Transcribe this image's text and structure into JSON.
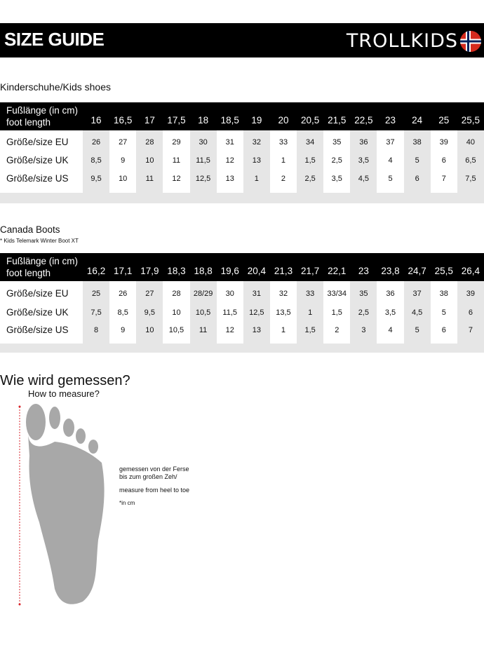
{
  "header": {
    "title": "SIZE GUIDE",
    "brand": "TROLLKIDS",
    "flag_icon": "norway-flag-icon"
  },
  "colors": {
    "band": "#000000",
    "alt_column": "#e6e6e6",
    "arrow": "#d9262c",
    "foot": "#a8a8a8"
  },
  "tables": [
    {
      "title": "Kinderschuhe/Kids shoes",
      "note": "",
      "header_label_1": "Fußlänge (in cm)",
      "header_label_2": "foot length",
      "foot_lengths": [
        "16",
        "16,5",
        "17",
        "17,5",
        "18",
        "18,5",
        "19",
        "20",
        "20,5",
        "21,5",
        "22,5",
        "23",
        "24",
        "25",
        "25,5"
      ],
      "rows": [
        {
          "label": "Größe/size EU",
          "values": [
            "26",
            "27",
            "28",
            "29",
            "30",
            "31",
            "32",
            "33",
            "34",
            "35",
            "36",
            "37",
            "38",
            "39",
            "40"
          ]
        },
        {
          "label": "Größe/size UK",
          "values": [
            "8,5",
            "9",
            "10",
            "11",
            "11,5",
            "12",
            "13",
            "1",
            "1,5",
            "2,5",
            "3,5",
            "4",
            "5",
            "6",
            "6,5"
          ]
        },
        {
          "label": "Größe/size US",
          "values": [
            "9,5",
            "10",
            "11",
            "12",
            "12,5",
            "13",
            "1",
            "2",
            "2,5",
            "3,5",
            "4,5",
            "5",
            "6",
            "7",
            "7,5"
          ]
        }
      ]
    },
    {
      "title": "Canada Boots",
      "note": "* Kids Telemark Winter Boot XT",
      "header_label_1": "Fußlänge (in cm)",
      "header_label_2": "foot length",
      "foot_lengths": [
        "16,2",
        "17,1",
        "17,9",
        "18,3",
        "18,8",
        "19,6",
        "20,4",
        "21,3",
        "21,7",
        "22,1",
        "23",
        "23,8",
        "24,7",
        "25,5",
        "26,4"
      ],
      "rows": [
        {
          "label": "Größe/size EU",
          "values": [
            "25",
            "26",
            "27",
            "28",
            "28/29",
            "30",
            "31",
            "32",
            "33",
            "33/34",
            "35",
            "36",
            "37",
            "38",
            "39"
          ]
        },
        {
          "label": "Größe/size UK",
          "values": [
            "7,5",
            "8,5",
            "9,5",
            "10",
            "10,5",
            "11,5",
            "12,5",
            "13,5",
            "1",
            "1,5",
            "2,5",
            "3,5",
            "4,5",
            "5",
            "6"
          ]
        },
        {
          "label": "Größe/size US",
          "values": [
            "8",
            "9",
            "10",
            "10,5",
            "11",
            "12",
            "13",
            "1",
            "1,5",
            "2",
            "3",
            "4",
            "5",
            "6",
            "7"
          ]
        }
      ]
    }
  ],
  "measure": {
    "title": "Wie wird gemessen?",
    "subtitle": "How to measure?",
    "text_de_1": "gemessen von der Ferse",
    "text_de_2": "bis zum großen Zeh/",
    "text_en": "measure from heel to toe",
    "unit_note": "*in cm"
  }
}
